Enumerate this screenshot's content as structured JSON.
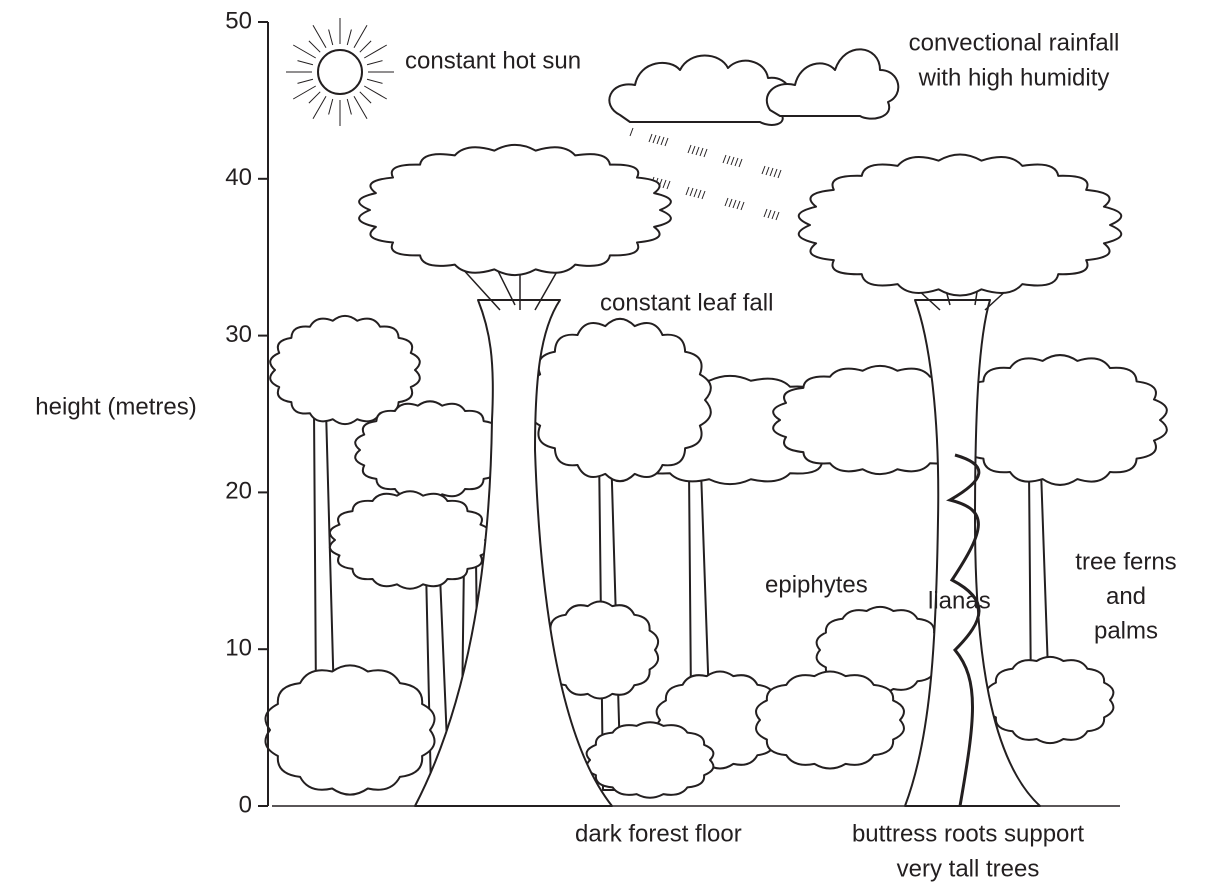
{
  "axis": {
    "label": "height (metres)",
    "ticks": [
      0,
      10,
      20,
      30,
      40,
      50
    ]
  },
  "labels": [
    {
      "lines": [
        "constant hot sun"
      ]
    },
    {
      "lines": [
        "convectional rainfall",
        "with high humidity"
      ]
    },
    {
      "lines": [
        "constant leaf fall"
      ]
    },
    {
      "lines": [
        "epiphytes"
      ]
    },
    {
      "lines": [
        "lianas"
      ]
    },
    {
      "lines": [
        "tree ferns",
        "and",
        "palms"
      ]
    },
    {
      "lines": [
        "dark forest floor"
      ]
    },
    {
      "lines": [
        "buttress roots support",
        "very tall trees"
      ]
    }
  ]
}
